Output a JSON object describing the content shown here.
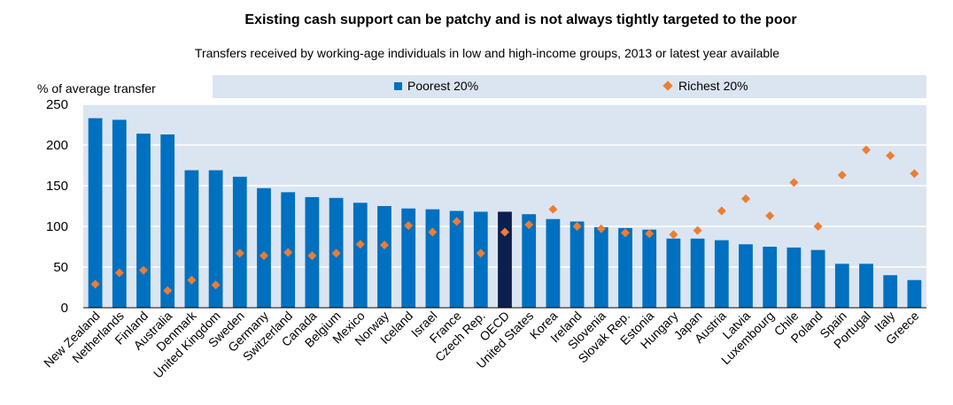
{
  "chart_data": {
    "type": "bar",
    "title": "Existing cash support can be patchy and is not always tightly targeted to the poor",
    "subtitle": "Transfers received by working-age individuals in low and high-income groups, 2013 or latest year available",
    "ylabel": "% of average transfer",
    "ylim": [
      0,
      250
    ],
    "yticks": [
      0,
      50,
      100,
      150,
      200,
      250
    ],
    "grid": true,
    "legend_placement": "top",
    "categories": [
      "New Zealand",
      "Netherlands",
      "Finland",
      "Australia",
      "Denmark",
      "United Kingdom",
      "Sweden",
      "Germany",
      "Switzerland",
      "Canada",
      "Belgium",
      "Mexico",
      "Norway",
      "Iceland",
      "Israel",
      "France",
      "Czech Rep.",
      "OECD",
      "United States",
      "Korea",
      "Ireland",
      "Slovenia",
      "Slovak Rep.",
      "Estonia",
      "Hungary",
      "Japan",
      "Austria",
      "Latvia",
      "Luxembourg",
      "Chile",
      "Poland",
      "Spain",
      "Portugal",
      "Italy",
      "Greece"
    ],
    "highlight_category": "OECD",
    "series": [
      {
        "name": "Poorest 20%",
        "kind": "bar",
        "color": "#0070c0",
        "values": [
          233,
          231,
          214,
          213,
          169,
          169,
          161,
          147,
          142,
          136,
          135,
          129,
          125,
          122,
          121,
          119,
          118,
          118,
          115,
          109,
          106,
          99,
          98,
          96,
          85,
          85,
          83,
          78,
          75,
          74,
          71,
          54,
          54,
          40,
          34
        ]
      },
      {
        "name": "Richest 20%",
        "kind": "marker",
        "color": "#ed7d31",
        "values": [
          29,
          43,
          46,
          21,
          34,
          28,
          67,
          64,
          68,
          64,
          67,
          78,
          77,
          101,
          93,
          106,
          67,
          93,
          102,
          121,
          100,
          97,
          92,
          91,
          90,
          95,
          119,
          134,
          113,
          154,
          100,
          163,
          194,
          187,
          165
        ]
      }
    ],
    "highlight_color": "#0d1f4e",
    "plot_background": "#dbe5f1"
  }
}
